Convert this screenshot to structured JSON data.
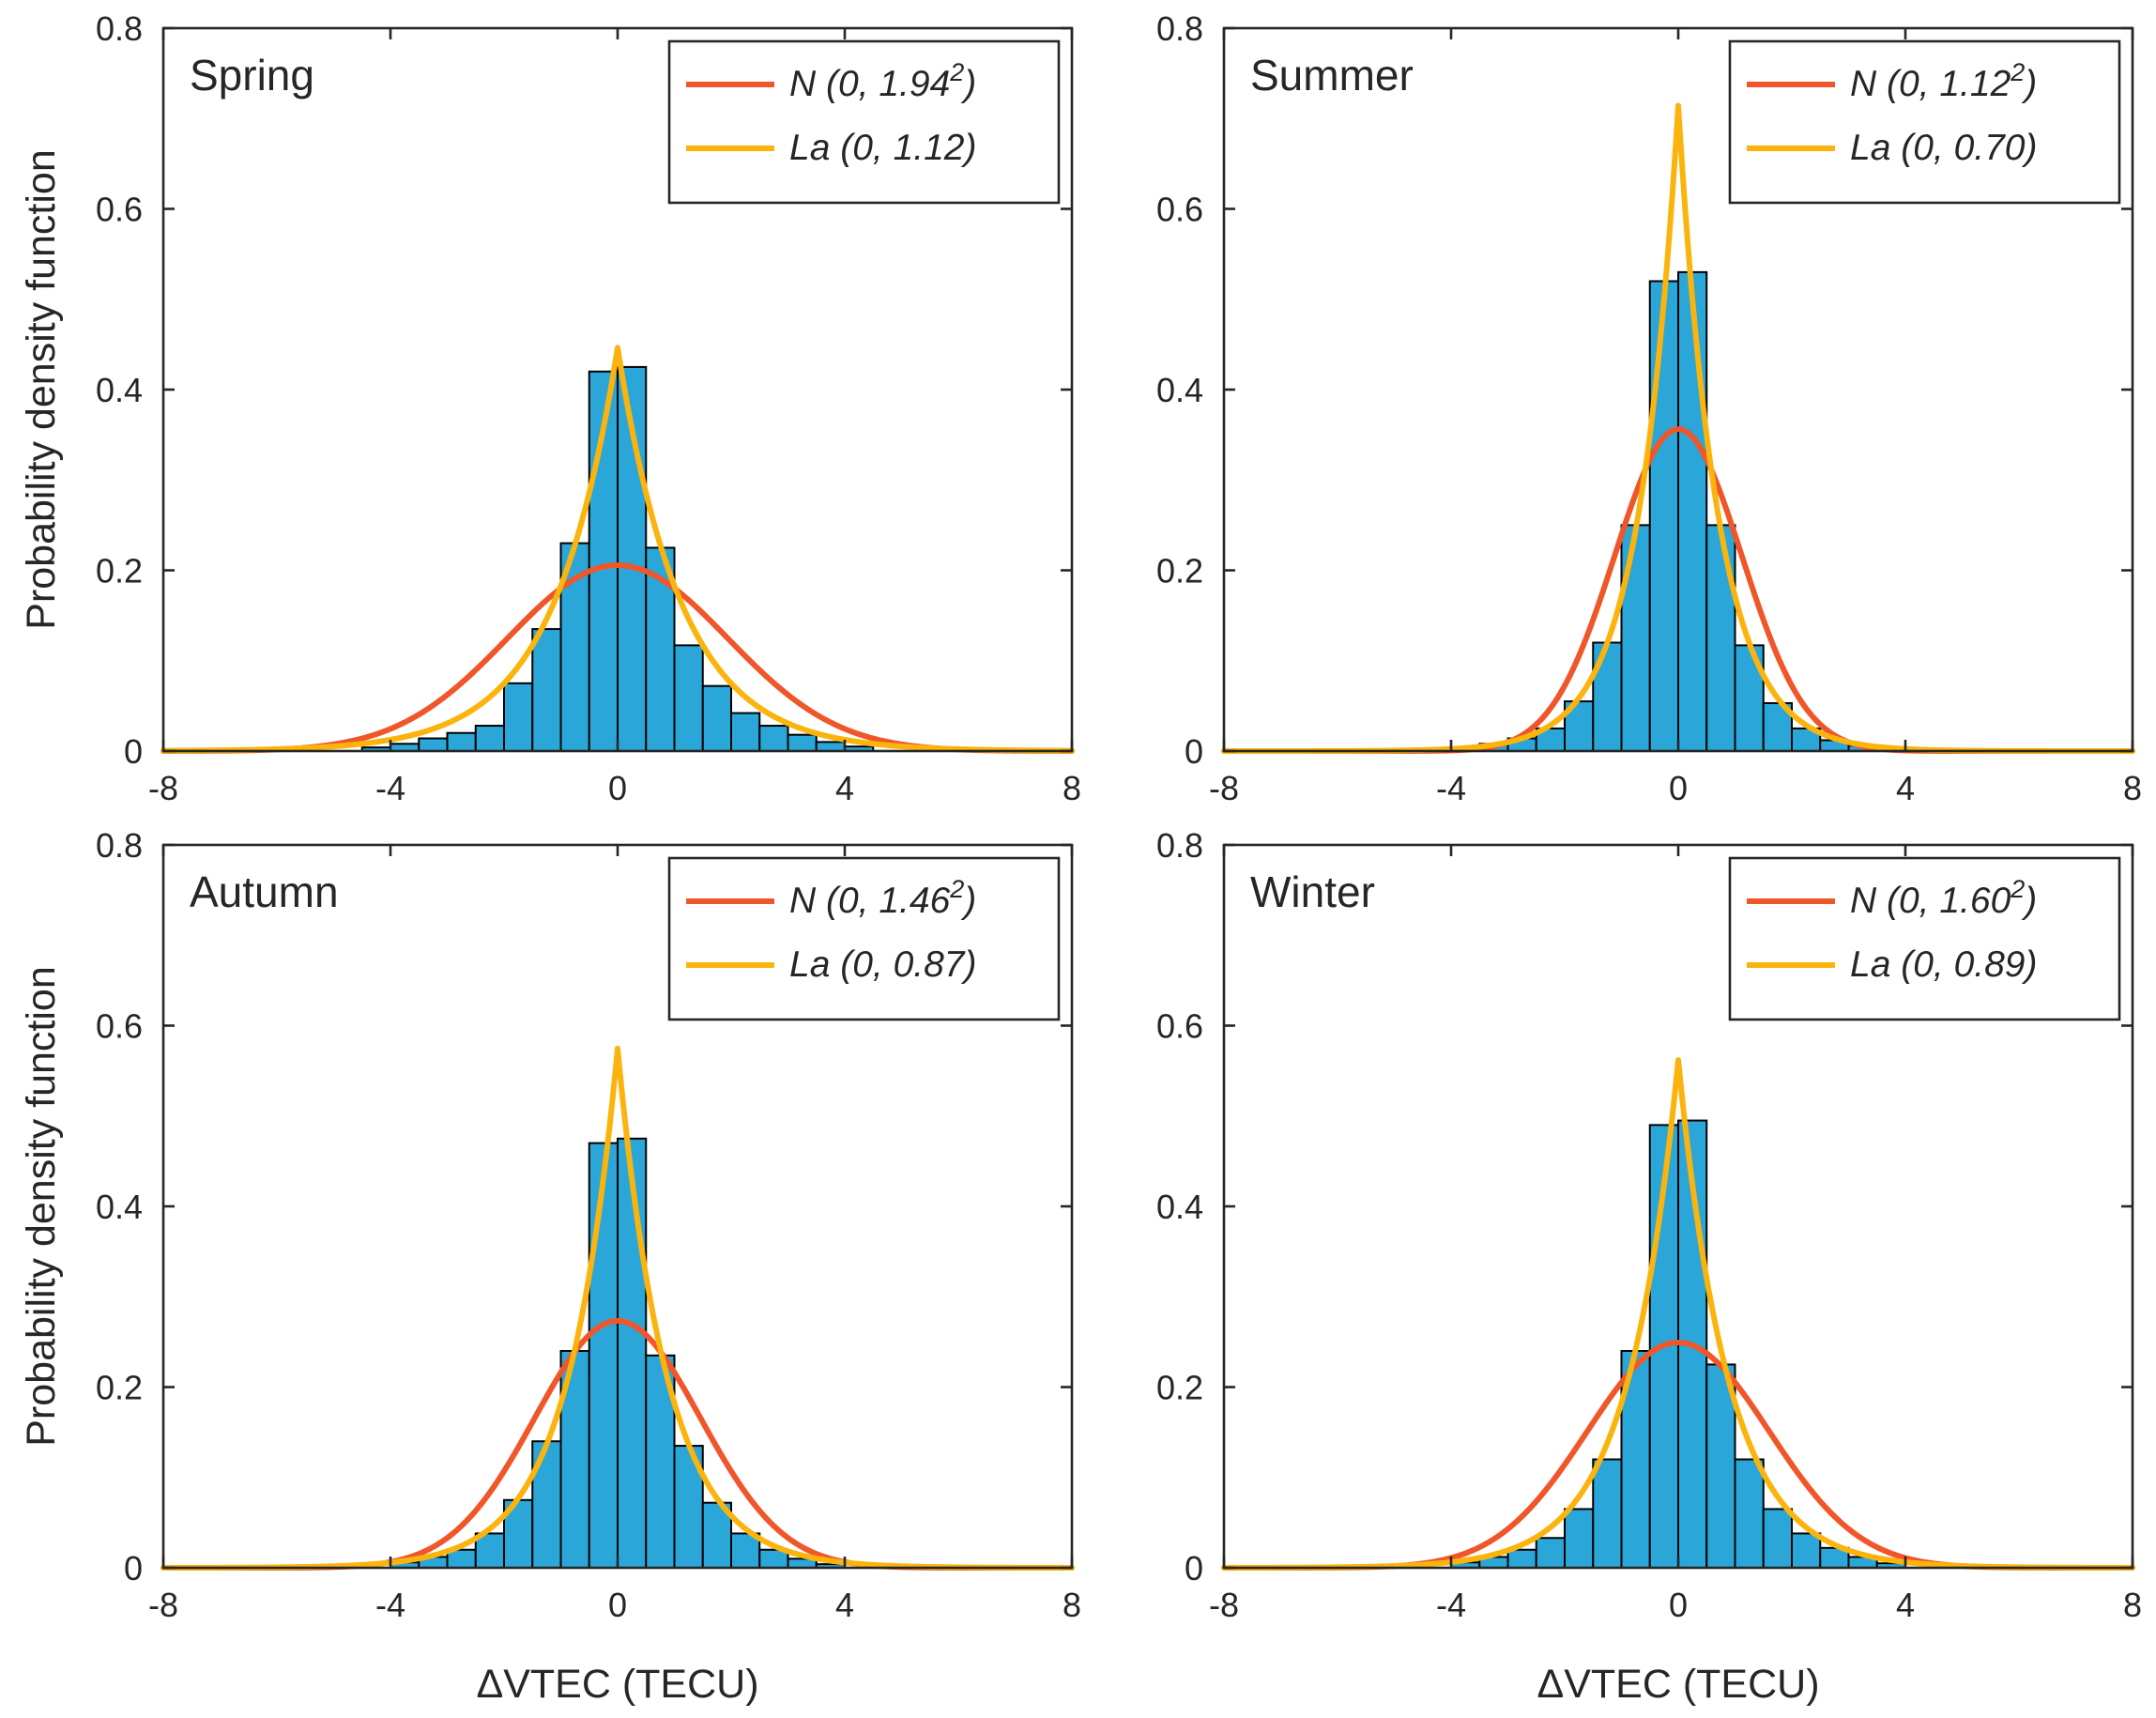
{
  "figure": {
    "ylabel": "Probability density function",
    "xlabel": "ΔVTEC (TECU)",
    "colors": {
      "bars": "#2aa7d8",
      "normal": "#f0562a",
      "laplace": "#fbb40d",
      "axes": "#262626"
    }
  },
  "chart_data": [
    {
      "type": "bar",
      "title": "Spring",
      "xlabel": "",
      "ylabel": "Probability density function",
      "xlim": [
        -8,
        8
      ],
      "ylim": [
        0,
        0.8
      ],
      "xticks": [
        "-8",
        "-4",
        "0",
        "4",
        "8"
      ],
      "yticks": [
        "0",
        "0.2",
        "0.4",
        "0.6",
        "0.8"
      ],
      "bin_width": 0.5,
      "bin_edges": [
        -4.5,
        -4,
        -3.5,
        -3,
        -2.5,
        -2,
        -1.5,
        -1,
        -0.5,
        0,
        0.5,
        1,
        1.5,
        2,
        2.5,
        3,
        3.5,
        4,
        4.5
      ],
      "values": [
        0.004,
        0.008,
        0.014,
        0.02,
        0.028,
        0.075,
        0.135,
        0.23,
        0.42,
        0.425,
        0.225,
        0.117,
        0.072,
        0.042,
        0.028,
        0.018,
        0.01,
        0.005
      ],
      "legend": {
        "position": "top-right"
      },
      "series": [
        {
          "name": "N (0, 1.94",
          "sup": "2",
          "close": ")",
          "dist": "normal",
          "mu": 0,
          "sigma": 1.94,
          "color": "#f0562a"
        },
        {
          "name": "La (0, 1.12)",
          "dist": "laplace",
          "mu": 0,
          "b": 1.12,
          "color": "#fbb40d"
        }
      ]
    },
    {
      "type": "bar",
      "title": "Summer",
      "xlabel": "",
      "ylabel": "",
      "xlim": [
        -8,
        8
      ],
      "ylim": [
        0,
        0.8
      ],
      "xticks": [
        "-8",
        "-4",
        "0",
        "4",
        "8"
      ],
      "yticks": [
        "0",
        "0.2",
        "0.4",
        "0.6",
        "0.8"
      ],
      "bin_width": 0.5,
      "bin_edges": [
        -4,
        -3.5,
        -3,
        -2.5,
        -2,
        -1.5,
        -1,
        -0.5,
        0,
        0.5,
        1,
        1.5,
        2,
        2.5,
        3,
        3.5,
        4
      ],
      "values": [
        0.004,
        0.008,
        0.014,
        0.025,
        0.055,
        0.12,
        0.25,
        0.52,
        0.53,
        0.25,
        0.117,
        0.053,
        0.025,
        0.012,
        0.006,
        0.003
      ],
      "legend": {
        "position": "top-right"
      },
      "series": [
        {
          "name": "N (0, 1.12",
          "sup": "2",
          "close": ")",
          "dist": "normal",
          "mu": 0,
          "sigma": 1.12,
          "color": "#f0562a"
        },
        {
          "name": "La (0, 0.70)",
          "dist": "laplace",
          "mu": 0,
          "b": 0.7,
          "color": "#fbb40d"
        }
      ]
    },
    {
      "type": "bar",
      "title": "Autumn",
      "xlabel": "ΔVTEC (TECU)",
      "ylabel": "Probability density function",
      "xlim": [
        -8,
        8
      ],
      "ylim": [
        0,
        0.8
      ],
      "xticks": [
        "-8",
        "-4",
        "0",
        "4",
        "8"
      ],
      "yticks": [
        "0",
        "0.2",
        "0.4",
        "0.6",
        "0.8"
      ],
      "bin_width": 0.5,
      "bin_edges": [
        -4,
        -3.5,
        -3,
        -2.5,
        -2,
        -1.5,
        -1,
        -0.5,
        0,
        0.5,
        1,
        1.5,
        2,
        2.5,
        3,
        3.5,
        4
      ],
      "values": [
        0.006,
        0.012,
        0.02,
        0.038,
        0.075,
        0.14,
        0.24,
        0.47,
        0.475,
        0.235,
        0.135,
        0.072,
        0.038,
        0.02,
        0.01,
        0.004
      ],
      "legend": {
        "position": "top-right"
      },
      "series": [
        {
          "name": "N (0, 1.46",
          "sup": "2",
          "close": ")",
          "dist": "normal",
          "mu": 0,
          "sigma": 1.46,
          "color": "#f0562a"
        },
        {
          "name": "La (0, 0.87)",
          "dist": "laplace",
          "mu": 0,
          "b": 0.87,
          "color": "#fbb40d"
        }
      ]
    },
    {
      "type": "bar",
      "title": "Winter",
      "xlabel": "ΔVTEC (TECU)",
      "ylabel": "",
      "xlim": [
        -8,
        8
      ],
      "ylim": [
        0,
        0.8
      ],
      "xticks": [
        "-8",
        "-4",
        "0",
        "4",
        "8"
      ],
      "yticks": [
        "0",
        "0.2",
        "0.4",
        "0.6",
        "0.8"
      ],
      "bin_width": 0.5,
      "bin_edges": [
        -4,
        -3.5,
        -3,
        -2.5,
        -2,
        -1.5,
        -1,
        -0.5,
        0,
        0.5,
        1,
        1.5,
        2,
        2.5,
        3,
        3.5,
        4
      ],
      "values": [
        0.006,
        0.012,
        0.02,
        0.033,
        0.065,
        0.12,
        0.24,
        0.49,
        0.495,
        0.225,
        0.12,
        0.065,
        0.038,
        0.022,
        0.012,
        0.005
      ],
      "legend": {
        "position": "top-right"
      },
      "series": [
        {
          "name": "N (0, 1.60",
          "sup": "2",
          "close": ")",
          "dist": "normal",
          "mu": 0,
          "sigma": 1.6,
          "color": "#f0562a"
        },
        {
          "name": "La (0, 0.89)",
          "dist": "laplace",
          "mu": 0,
          "b": 0.89,
          "color": "#fbb40d"
        }
      ]
    }
  ]
}
